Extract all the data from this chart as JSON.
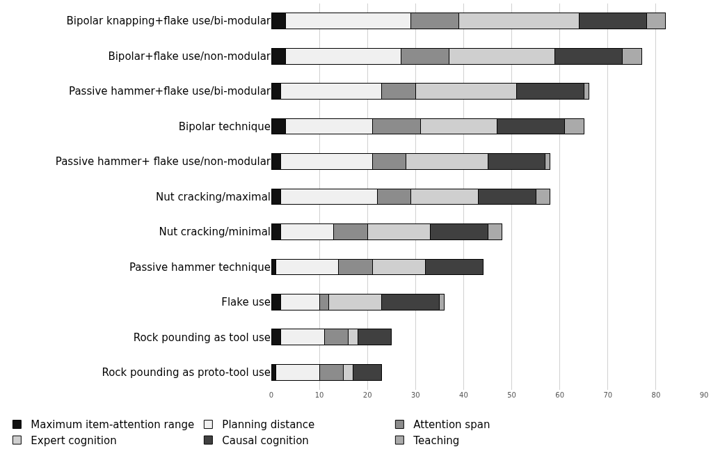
{
  "chart_data": {
    "type": "bar",
    "orientation": "horizontal",
    "stacked": true,
    "categories": [
      "Bipolar knapping+flake use/bi-modular",
      "Bipolar+flake use/non-modular",
      "Passive hammer+flake use/bi-modular",
      "Bipolar technique",
      "Passive hammer+ flake use/non-modular",
      "Nut cracking/maximal",
      "Nut cracking/minimal",
      "Passive hammer technique",
      "Flake use",
      "Rock pounding as tool use",
      "Rock pounding as proto-tool use"
    ],
    "series": [
      {
        "name": "Maximum item-attention range",
        "color": "#111111",
        "values": [
          3,
          3,
          2,
          3,
          2,
          2,
          2,
          1,
          2,
          2,
          1
        ]
      },
      {
        "name": "Planning distance",
        "color": "#f0f0f0",
        "values": [
          26,
          24,
          21,
          18,
          19,
          20,
          11,
          13,
          8,
          9,
          9
        ]
      },
      {
        "name": "Attention span",
        "color": "#8c8c8c",
        "values": [
          10,
          10,
          7,
          10,
          7,
          7,
          7,
          7,
          2,
          5,
          5
        ]
      },
      {
        "name": "Expert cognition",
        "color": "#cfcfcf",
        "values": [
          25,
          22,
          21,
          16,
          17,
          14,
          13,
          11,
          11,
          2,
          2
        ]
      },
      {
        "name": "Causal cognition",
        "color": "#404040",
        "values": [
          14,
          14,
          14,
          14,
          12,
          12,
          12,
          12,
          12,
          7,
          6
        ]
      },
      {
        "name": "Teaching",
        "color": "#aaaaaa",
        "values": [
          4,
          4,
          1,
          4,
          1,
          3,
          3,
          null,
          1,
          null,
          null
        ]
      }
    ],
    "xlim": [
      0,
      90
    ],
    "xticks": [
      0,
      10,
      20,
      30,
      40,
      50,
      60,
      70,
      80,
      90
    ],
    "grid": "x",
    "legend": "bottom"
  }
}
